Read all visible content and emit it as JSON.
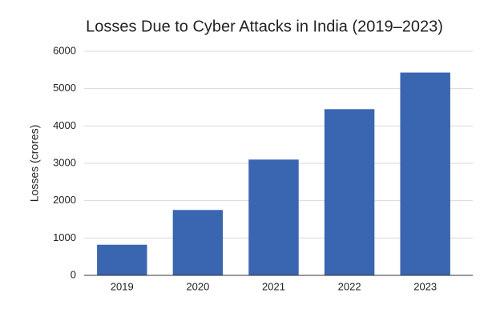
{
  "chart_data": {
    "type": "bar",
    "title": "Losses Due to Cyber Attacks in India (2019–2023)",
    "y_label": "Losses (crores)",
    "categories": [
      "2019",
      "2020",
      "2021",
      "2022",
      "2023"
    ],
    "values": [
      820,
      1750,
      3100,
      4450,
      5430
    ],
    "color": "#3a65b0",
    "ylim": [
      0,
      6000
    ],
    "yticks": [
      0,
      1000,
      2000,
      3000,
      4000,
      5000,
      6000
    ],
    "grid": true
  }
}
